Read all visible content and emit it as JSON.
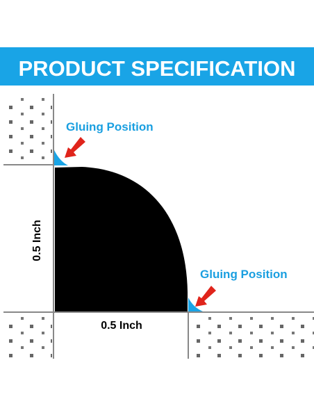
{
  "header": {
    "title": "PRODUCT SPECIFICATION"
  },
  "annotations": {
    "top_label": "Gluing Position",
    "bottom_label": "Gluing Position"
  },
  "dimensions": {
    "height": "0.5 Inch",
    "width": "0.5 Inch"
  }
}
